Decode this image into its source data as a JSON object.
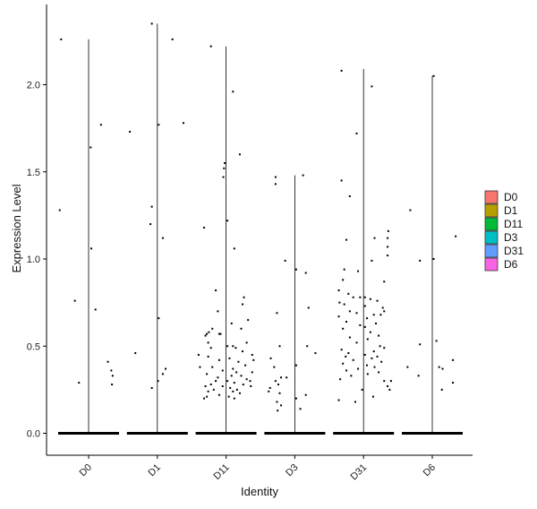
{
  "chart_data": {
    "type": "scatter",
    "subtype": "violin-with-jitter",
    "xlabel": "Identity",
    "ylabel": "Expression Level",
    "categories": [
      "D0",
      "D1",
      "D11",
      "D3",
      "D31",
      "D6"
    ],
    "ylim": [
      -0.12,
      2.4
    ],
    "yticks": [
      "0.0",
      "0.5",
      "1.0",
      "1.5",
      "2.0"
    ],
    "ytick_values": [
      0,
      0.5,
      1.0,
      1.5,
      2.0
    ],
    "grid": false,
    "legend_position": "right",
    "legend": [
      {
        "label": "D0",
        "color": "#F8766D"
      },
      {
        "label": "D1",
        "color": "#B79F00"
      },
      {
        "label": "D11",
        "color": "#00BA38"
      },
      {
        "label": "D3",
        "color": "#00BFC4"
      },
      {
        "label": "D31",
        "color": "#619CFF"
      },
      {
        "label": "D6",
        "color": "#F564E3"
      }
    ],
    "violin_max": [
      2.26,
      2.35,
      2.22,
      1.48,
      2.09,
      2.05
    ],
    "points": {
      "D0": [
        [
          -0.4,
          2.26
        ],
        [
          -0.42,
          1.28
        ],
        [
          0.03,
          1.64
        ],
        [
          0.18,
          1.77
        ],
        [
          0.04,
          1.06
        ],
        [
          -0.2,
          0.76
        ],
        [
          0.1,
          0.71
        ],
        [
          0.28,
          0.41
        ],
        [
          0.33,
          0.36
        ],
        [
          0.35,
          0.33
        ],
        [
          0.34,
          0.28
        ],
        [
          -0.14,
          0.29
        ]
      ],
      "D1": [
        [
          -0.08,
          2.35
        ],
        [
          0.22,
          2.26
        ],
        [
          0.38,
          1.78
        ],
        [
          0.02,
          1.77
        ],
        [
          -0.4,
          1.73
        ],
        [
          -0.08,
          1.3
        ],
        [
          -0.1,
          1.2
        ],
        [
          0.08,
          1.12
        ],
        [
          0.02,
          0.66
        ],
        [
          -0.32,
          0.46
        ],
        [
          0.12,
          0.37
        ],
        [
          0.08,
          0.34
        ],
        [
          0.01,
          0.3
        ],
        [
          -0.08,
          0.26
        ]
      ],
      "D11": [
        [
          -0.22,
          2.22
        ],
        [
          0.1,
          1.96
        ],
        [
          -0.02,
          1.55
        ],
        [
          -0.03,
          1.52
        ],
        [
          -0.04,
          1.47
        ],
        [
          0.2,
          1.6
        ],
        [
          0.02,
          1.22
        ],
        [
          -0.32,
          1.18
        ],
        [
          0.12,
          1.06
        ],
        [
          -0.15,
          0.82
        ],
        [
          0.26,
          0.78
        ],
        [
          0.24,
          0.74
        ],
        [
          0.32,
          0.65
        ],
        [
          -0.12,
          0.7
        ],
        [
          0.08,
          0.63
        ],
        [
          -0.2,
          0.6
        ],
        [
          -0.25,
          0.58
        ],
        [
          -0.28,
          0.57
        ],
        [
          -0.3,
          0.56
        ],
        [
          -0.1,
          0.57
        ],
        [
          -0.08,
          0.57
        ],
        [
          0.22,
          0.6
        ],
        [
          0.3,
          0.52
        ],
        [
          -0.26,
          0.52
        ],
        [
          -0.22,
          0.49
        ],
        [
          0.02,
          0.5
        ],
        [
          0.1,
          0.5
        ],
        [
          0.14,
          0.49
        ],
        [
          0.24,
          0.47
        ],
        [
          0.38,
          0.45
        ],
        [
          -0.26,
          0.44
        ],
        [
          0.05,
          0.43
        ],
        [
          -0.1,
          0.42
        ],
        [
          0.18,
          0.41
        ],
        [
          0.28,
          0.39
        ],
        [
          -0.2,
          0.38
        ],
        [
          0.1,
          0.37
        ],
        [
          -0.05,
          0.36
        ],
        [
          0.15,
          0.35
        ],
        [
          -0.28,
          0.34
        ],
        [
          0.08,
          0.33
        ],
        [
          0.22,
          0.33
        ],
        [
          -0.12,
          0.32
        ],
        [
          0.3,
          0.31
        ],
        [
          -0.15,
          0.3
        ],
        [
          0.02,
          0.3
        ],
        [
          0.12,
          0.29
        ],
        [
          -0.22,
          0.28
        ],
        [
          0.25,
          0.28
        ],
        [
          0.35,
          0.3
        ],
        [
          0.36,
          0.27
        ],
        [
          -0.3,
          0.27
        ],
        [
          -0.05,
          0.27
        ],
        [
          0.06,
          0.26
        ],
        [
          -0.18,
          0.25
        ],
        [
          0.16,
          0.25
        ],
        [
          -0.26,
          0.24
        ],
        [
          0.1,
          0.24
        ],
        [
          0.2,
          0.23
        ],
        [
          -0.1,
          0.22
        ],
        [
          -0.28,
          0.21
        ],
        [
          0.04,
          0.21
        ],
        [
          -0.32,
          0.2
        ],
        [
          0.12,
          0.2
        ],
        [
          -0.4,
          0.45
        ],
        [
          -0.38,
          0.38
        ],
        [
          0.4,
          0.42
        ],
        [
          0.38,
          0.35
        ]
      ],
      "D3": [
        [
          -0.28,
          1.47
        ],
        [
          -0.28,
          1.43
        ],
        [
          0.12,
          1.48
        ],
        [
          -0.14,
          0.99
        ],
        [
          0.02,
          0.94
        ],
        [
          0.16,
          0.92
        ],
        [
          0.2,
          0.72
        ],
        [
          -0.26,
          0.69
        ],
        [
          0.18,
          0.5
        ],
        [
          -0.22,
          0.5
        ],
        [
          0.3,
          0.46
        ],
        [
          -0.35,
          0.43
        ],
        [
          -0.3,
          0.38
        ],
        [
          0.02,
          0.39
        ],
        [
          -0.12,
          0.32
        ],
        [
          -0.2,
          0.32
        ],
        [
          -0.28,
          0.3
        ],
        [
          -0.24,
          0.28
        ],
        [
          -0.36,
          0.26
        ],
        [
          -0.38,
          0.24
        ],
        [
          -0.22,
          0.23
        ],
        [
          0.16,
          0.22
        ],
        [
          0.02,
          0.2
        ],
        [
          -0.26,
          0.18
        ],
        [
          -0.2,
          0.16
        ],
        [
          -0.25,
          0.13
        ],
        [
          0.08,
          0.14
        ]
      ],
      "D31": [
        [
          -0.32,
          2.08
        ],
        [
          0.12,
          1.99
        ],
        [
          -0.1,
          1.72
        ],
        [
          -0.32,
          1.45
        ],
        [
          -0.2,
          1.36
        ],
        [
          -0.25,
          1.11
        ],
        [
          0.36,
          1.16
        ],
        [
          0.35,
          1.12
        ],
        [
          0.16,
          1.12
        ],
        [
          0.35,
          1.07
        ],
        [
          0.35,
          1.02
        ],
        [
          0.12,
          0.99
        ],
        [
          -0.28,
          0.94
        ],
        [
          -0.08,
          0.93
        ],
        [
          -0.3,
          0.88
        ],
        [
          0.3,
          0.87
        ],
        [
          -0.36,
          0.82
        ],
        [
          -0.22,
          0.8
        ],
        [
          -0.15,
          0.78
        ],
        [
          -0.05,
          0.78
        ],
        [
          0.02,
          0.78
        ],
        [
          0.1,
          0.77
        ],
        [
          0.2,
          0.76
        ],
        [
          -0.35,
          0.75
        ],
        [
          -0.28,
          0.74
        ],
        [
          0.02,
          0.73
        ],
        [
          0.28,
          0.72
        ],
        [
          0.3,
          0.7
        ],
        [
          -0.2,
          0.7
        ],
        [
          -0.1,
          0.69
        ],
        [
          0.15,
          0.68
        ],
        [
          0.25,
          0.68
        ],
        [
          -0.36,
          0.67
        ],
        [
          0.05,
          0.66
        ],
        [
          -0.25,
          0.64
        ],
        [
          0.18,
          0.63
        ],
        [
          -0.05,
          0.62
        ],
        [
          0.02,
          0.61
        ],
        [
          -0.3,
          0.6
        ],
        [
          0.1,
          0.58
        ],
        [
          0.22,
          0.56
        ],
        [
          -0.2,
          0.55
        ],
        [
          0.06,
          0.54
        ],
        [
          -0.1,
          0.52
        ],
        [
          0.24,
          0.5
        ],
        [
          0.3,
          0.49
        ],
        [
          -0.32,
          0.48
        ],
        [
          0.15,
          0.47
        ],
        [
          -0.22,
          0.46
        ],
        [
          0.02,
          0.45
        ],
        [
          0.2,
          0.44
        ],
        [
          -0.26,
          0.44
        ],
        [
          0.12,
          0.43
        ],
        [
          -0.15,
          0.42
        ],
        [
          0.26,
          0.41
        ],
        [
          -0.3,
          0.4
        ],
        [
          0.05,
          0.39
        ],
        [
          0.16,
          0.38
        ],
        [
          -0.08,
          0.37
        ],
        [
          -0.25,
          0.36
        ],
        [
          0.22,
          0.35
        ],
        [
          0.06,
          0.34
        ],
        [
          -0.18,
          0.33
        ],
        [
          0.3,
          0.3
        ],
        [
          0.35,
          0.27
        ],
        [
          0.38,
          0.25
        ],
        [
          -0.02,
          0.25
        ],
        [
          -0.34,
          0.31
        ],
        [
          0.14,
          0.21
        ],
        [
          -0.36,
          0.19
        ],
        [
          -0.12,
          0.18
        ],
        [
          0.4,
          0.3
        ]
      ],
      "D6": [
        [
          0.02,
          2.05
        ],
        [
          -0.32,
          1.28
        ],
        [
          -0.18,
          0.99
        ],
        [
          0.02,
          1.0
        ],
        [
          0.06,
          0.53
        ],
        [
          -0.18,
          0.51
        ],
        [
          0.1,
          0.38
        ],
        [
          0.15,
          0.37
        ],
        [
          -0.36,
          0.38
        ],
        [
          -0.2,
          0.33
        ],
        [
          0.3,
          0.42
        ],
        [
          0.3,
          0.29
        ],
        [
          0.14,
          0.25
        ],
        [
          0.34,
          1.13
        ]
      ]
    }
  }
}
